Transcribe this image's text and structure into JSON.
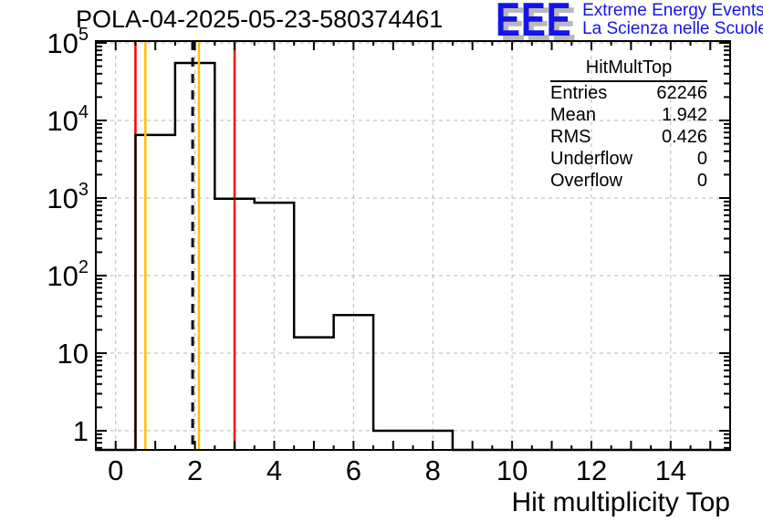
{
  "header": {
    "title": "POLA-04-2025-05-23-580374461"
  },
  "logo": {
    "acronym": "EEE",
    "tagline1": "Extreme Energy Events",
    "tagline2": "La Scienza nelle Scuole",
    "color": "#1414e8",
    "shadow_color": "#b8b8b8"
  },
  "stats_box": {
    "title": "HitMultTop",
    "rows": [
      {
        "label": "Entries",
        "value": "62246"
      },
      {
        "label": "Mean",
        "value": "1.942"
      },
      {
        "label": "RMS",
        "value": "0.426"
      },
      {
        "label": "Underflow",
        "value": "0"
      },
      {
        "label": "Overflow",
        "value": "0"
      }
    ]
  },
  "chart_data": {
    "type": "bar",
    "title": "POLA-04-2025-05-23-580374461",
    "xlabel": "Hit multiplicity Top",
    "ylabel": "",
    "x_range": [
      -0.5,
      15.5
    ],
    "y_range": [
      0.566,
      105500
    ],
    "y_scale": "log",
    "grid": true,
    "x_major_ticks": [
      0,
      2,
      4,
      6,
      8,
      10,
      12,
      14
    ],
    "y_decades": [
      1,
      10,
      100,
      1000,
      10000,
      100000
    ],
    "bin_centers": [
      0,
      1,
      2,
      3,
      4,
      5,
      6,
      7,
      8,
      9,
      10,
      11,
      12,
      13,
      14,
      15
    ],
    "values": [
      0,
      6500,
      55000,
      980,
      870,
      16,
      31,
      1,
      1,
      0,
      0,
      0,
      0,
      0,
      0,
      0
    ],
    "entries": 62246,
    "mean": 1.942,
    "rms": 0.426,
    "underflow": 0,
    "overflow": 0,
    "line_color": "#000000",
    "grid_color": "#b9b9b9",
    "vlines": [
      {
        "x": 0.5,
        "color": "#ff0000",
        "style": "solid",
        "name": "cut-line-red-low"
      },
      {
        "x": 0.75,
        "color": "#ffc000",
        "style": "solid",
        "name": "cut-line-orange-low"
      },
      {
        "x": 1.942,
        "color": "#000000",
        "style": "dashed",
        "name": "mean-line"
      },
      {
        "x": 2.1,
        "color": "#ffc000",
        "style": "solid",
        "name": "cut-line-orange-high"
      },
      {
        "x": 3.0,
        "color": "#ff0000",
        "style": "solid",
        "name": "cut-line-red-high"
      }
    ]
  }
}
